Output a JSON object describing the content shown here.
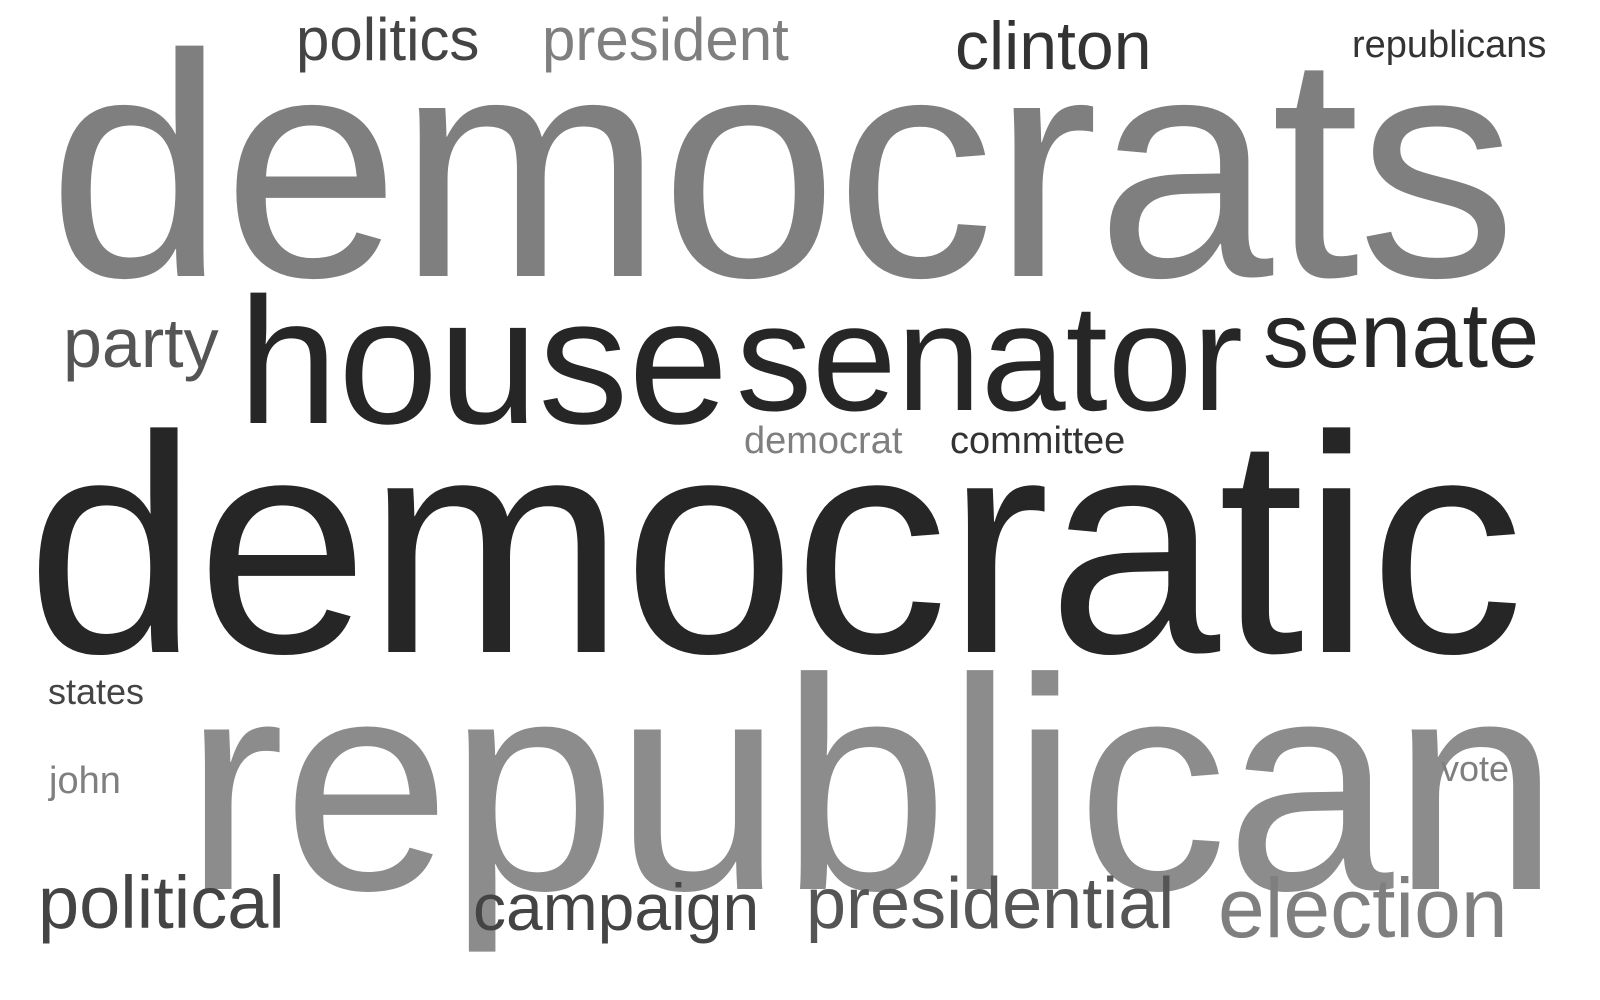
{
  "colors": {
    "dark": "#262626",
    "mid_dark": "#444444",
    "mid": "#555555",
    "mid_gray": "#6a6a6a",
    "gray": "#7f7f7f",
    "light_gray": "#8c8c8c"
  },
  "words": {
    "democratic": {
      "text": "democratic",
      "color": "#262626"
    },
    "democrats": {
      "text": "democrats",
      "color": "#7f7f7f"
    },
    "republican": {
      "text": "republican",
      "color": "#8c8c8c"
    },
    "senator": {
      "text": "senator",
      "color": "#262626"
    },
    "house": {
      "text": "house",
      "color": "#262626"
    },
    "senate": {
      "text": "senate",
      "color": "#262626"
    },
    "election": {
      "text": "election",
      "color": "#7f7f7f"
    },
    "presidential": {
      "text": "presidential",
      "color": "#555555"
    },
    "campaign": {
      "text": "campaign",
      "color": "#444444"
    },
    "political": {
      "text": "political",
      "color": "#444444"
    },
    "party": {
      "text": "party",
      "color": "#555555"
    },
    "clinton": {
      "text": "clinton",
      "color": "#333333"
    },
    "politics": {
      "text": "politics",
      "color": "#444444"
    },
    "president": {
      "text": "president",
      "color": "#7f7f7f"
    },
    "republicans": {
      "text": "republicans",
      "color": "#333333"
    },
    "democrat": {
      "text": "democrat",
      "color": "#7f7f7f"
    },
    "committee": {
      "text": "committee",
      "color": "#333333"
    },
    "states": {
      "text": "states",
      "color": "#444444"
    },
    "john": {
      "text": "john",
      "color": "#7f7f7f"
    },
    "vote": {
      "text": "vote",
      "color": "#7f7f7f"
    }
  }
}
